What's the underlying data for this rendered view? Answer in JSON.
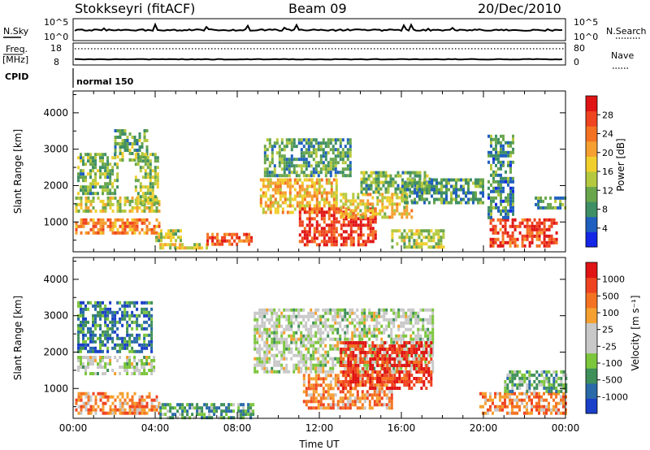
{
  "header": {
    "station": "Stokkseyri (fitACF)",
    "beam": "Beam 09",
    "date": "20/Dec/2010"
  },
  "strip_nsky": {
    "left_label": "N.Sky",
    "right_label": "N.Search",
    "left_ticks": [
      "10^5",
      "10^0"
    ],
    "right_ticks": [
      "10^5",
      "10^0"
    ]
  },
  "strip_freq": {
    "left_label_1": "Freq.",
    "left_label_2": "[MHz]",
    "right_label": "Nave",
    "left_ticks": [
      "18",
      "8"
    ],
    "right_ticks": [
      "80",
      "0"
    ]
  },
  "strip_cpid": {
    "label": "CPID",
    "mode": "normal 150"
  },
  "chart_data": [
    {
      "type": "heatmap",
      "ylabel": "Slant Range [km]",
      "yticks": [
        1000,
        2000,
        3000,
        4000
      ],
      "ylim": [
        180,
        4600
      ],
      "xlim": [
        0,
        24
      ],
      "xticks": [
        "00:00",
        "04:00",
        "08:00",
        "12:00",
        "16:00",
        "20:00",
        "00:00"
      ],
      "colorbar": {
        "label": "Power [dB]",
        "ticks": [
          "28",
          "24",
          "20",
          "16",
          "12",
          "8",
          "4"
        ],
        "colors": [
          "#1427e6",
          "#1f5fbf",
          "#3f8f65",
          "#69a64c",
          "#b5c93f",
          "#f0cf2d",
          "#f5a030",
          "#f47322",
          "#ef4420",
          "#e01414"
        ]
      },
      "regions": [
        {
          "t": [
            0.1,
            4.2
          ],
          "r": [
            700,
            1100
          ],
          "level": 0.72
        },
        {
          "t": [
            0.1,
            4.2
          ],
          "r": [
            1300,
            1700
          ],
          "level": 0.5
        },
        {
          "t": [
            0.2,
            2.2
          ],
          "r": [
            1800,
            2900
          ],
          "level": 0.35
        },
        {
          "t": [
            2.0,
            3.6
          ],
          "r": [
            2700,
            3550
          ],
          "level": 0.35
        },
        {
          "t": [
            3.0,
            4.1
          ],
          "r": [
            1500,
            2900
          ],
          "level": 0.4
        },
        {
          "t": [
            4.2,
            6.6
          ],
          "r": [
            280,
            420
          ],
          "level": 0.55
        },
        {
          "t": [
            6.5,
            8.7
          ],
          "r": [
            350,
            700
          ],
          "level": 0.82
        },
        {
          "t": [
            4.0,
            5.2
          ],
          "r": [
            500,
            800
          ],
          "level": 0.45
        },
        {
          "t": [
            9.1,
            12.8
          ],
          "r": [
            1300,
            2200
          ],
          "level": 0.6
        },
        {
          "t": [
            9.3,
            13.5
          ],
          "r": [
            2300,
            3300
          ],
          "level": 0.3
        },
        {
          "t": [
            11.0,
            14.8
          ],
          "r": [
            400,
            1400
          ],
          "level": 0.88
        },
        {
          "t": [
            13.0,
            16.5
          ],
          "r": [
            1100,
            1800
          ],
          "level": 0.55
        },
        {
          "t": [
            14.0,
            17.5
          ],
          "r": [
            1800,
            2400
          ],
          "level": 0.35
        },
        {
          "t": [
            15.5,
            18.0
          ],
          "r": [
            300,
            800
          ],
          "level": 0.45
        },
        {
          "t": [
            16.0,
            20.0
          ],
          "r": [
            1500,
            2200
          ],
          "level": 0.3
        },
        {
          "t": [
            20.3,
            23.6
          ],
          "r": [
            300,
            1100
          ],
          "level": 0.85
        },
        {
          "t": [
            20.2,
            21.4
          ],
          "r": [
            1100,
            3400
          ],
          "level": 0.25
        },
        {
          "t": [
            22.5,
            24.0
          ],
          "r": [
            1400,
            1700
          ],
          "level": 0.3
        }
      ]
    },
    {
      "type": "heatmap",
      "ylabel": "Slant Range [km]",
      "yticks": [
        1000,
        2000,
        3000,
        4000
      ],
      "ylim": [
        180,
        4600
      ],
      "xlim": [
        0,
        24
      ],
      "xticks": [
        "00:00",
        "04:00",
        "08:00",
        "12:00",
        "16:00",
        "20:00",
        "00:00"
      ],
      "xlabel": "Time UT",
      "colorbar": {
        "label": "Velocity [m s⁻¹]",
        "ticks": [
          "1000",
          "500",
          "100",
          "25",
          "-25",
          "-100",
          "-500",
          "-1000"
        ],
        "colors": [
          "#1a3fc8",
          "#2a6aa8",
          "#3f8f5a",
          "#7cc63c",
          "#c8c8c8",
          "#c8c8c8",
          "#f5a030",
          "#f47322",
          "#ef4420",
          "#e01414"
        ]
      },
      "regions": [
        {
          "t": [
            0.1,
            4.2
          ],
          "r": [
            350,
            900
          ],
          "level": 0.72
        },
        {
          "t": [
            0.2,
            4.0
          ],
          "r": [
            1400,
            1900
          ],
          "level": 0.45
        },
        {
          "t": [
            0.2,
            3.8
          ],
          "r": [
            2000,
            3400
          ],
          "level": 0.2
        },
        {
          "t": [
            4.2,
            8.8
          ],
          "r": [
            220,
            600
          ],
          "level": 0.28
        },
        {
          "t": [
            8.8,
            17.5
          ],
          "r": [
            1500,
            3200
          ],
          "level": 0.45
        },
        {
          "t": [
            11.2,
            15.5
          ],
          "r": [
            500,
            1400
          ],
          "level": 0.72
        },
        {
          "t": [
            13.0,
            17.5
          ],
          "r": [
            1000,
            2300
          ],
          "level": 0.9
        },
        {
          "t": [
            19.8,
            24.0
          ],
          "r": [
            350,
            900
          ],
          "level": 0.72
        },
        {
          "t": [
            21.0,
            24.0
          ],
          "r": [
            900,
            1500
          ],
          "level": 0.3
        }
      ]
    }
  ],
  "colors": {
    "trace": "#000000",
    "axes": "#000000"
  }
}
